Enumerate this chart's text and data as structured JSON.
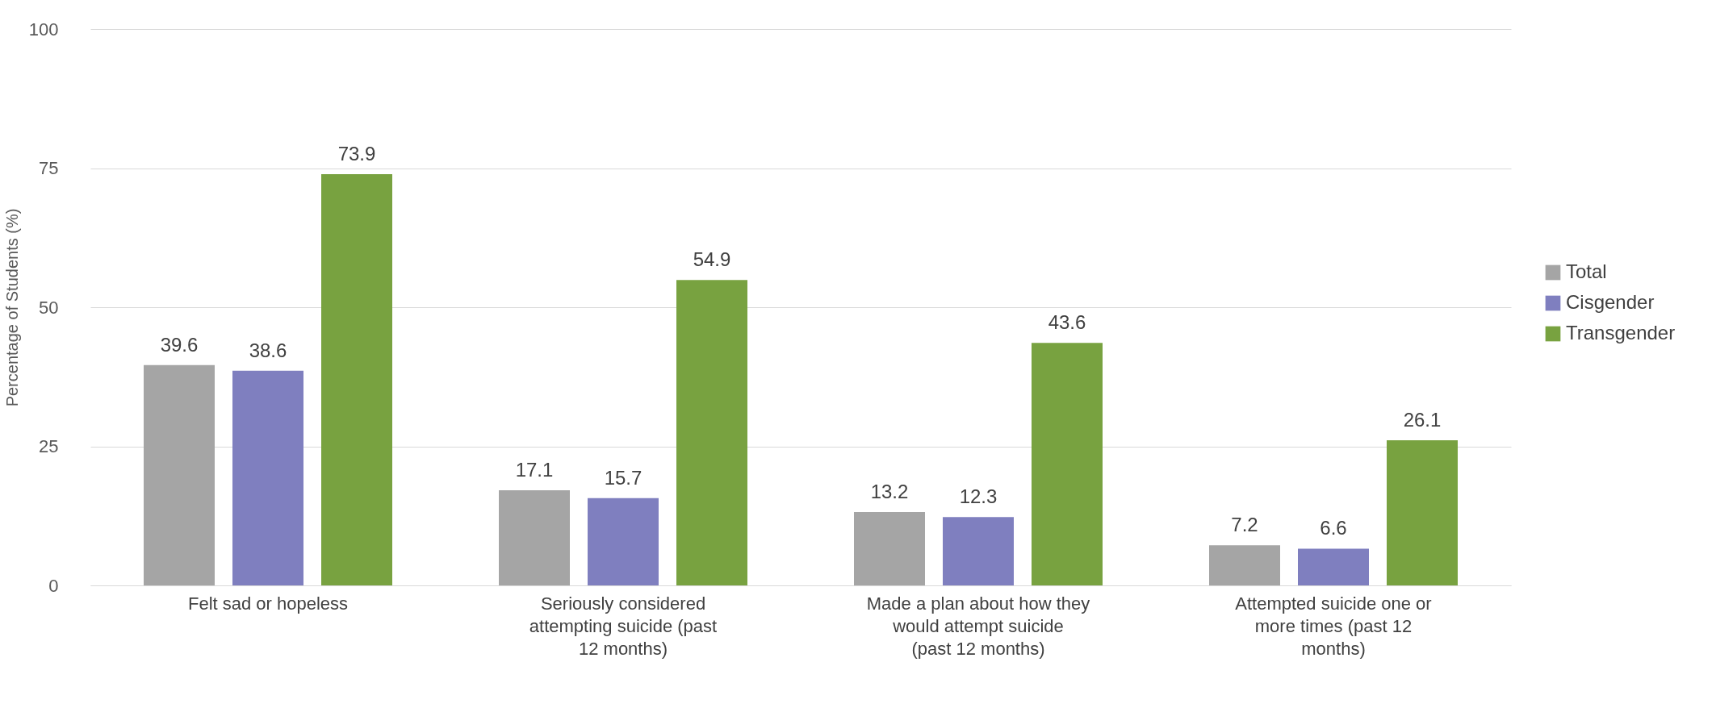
{
  "chart_data": {
    "type": "bar",
    "ylabel": "Percentage of Students (%)",
    "categories": [
      "Felt sad or hopeless",
      "Seriously considered attempting suicide (past 12 months)",
      "Made a plan about how they would attempt suicide (past 12 months)",
      "Attempted suicide one or more times (past 12 months)"
    ],
    "series": [
      {
        "name": "Total",
        "color": "#a5a5a5",
        "values": [
          39.6,
          17.1,
          13.2,
          7.2
        ]
      },
      {
        "name": "Cisgender",
        "color": "#7f7fbf",
        "values": [
          38.6,
          15.7,
          12.3,
          6.6
        ]
      },
      {
        "name": "Transgender",
        "color": "#78a240",
        "values": [
          73.9,
          54.9,
          43.6,
          26.1
        ]
      }
    ],
    "ylim": [
      0,
      100
    ],
    "yticks": [
      0,
      25,
      50,
      75,
      100
    ],
    "grid": "y",
    "legend": "right",
    "data_labels": true
  }
}
